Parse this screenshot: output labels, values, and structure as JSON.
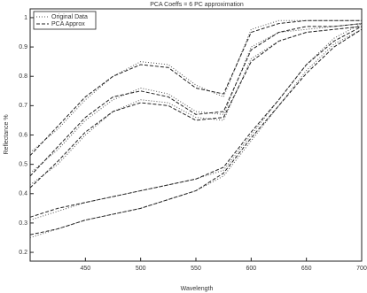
{
  "chart_data": {
    "type": "line",
    "title": "PCA Coeffs = 6 PC approximation",
    "x_label": "Wavelength",
    "y_label": "Reflectance %",
    "x": [
      400,
      425,
      450,
      475,
      500,
      525,
      550,
      575,
      600,
      625,
      650,
      675,
      700
    ],
    "xlim": [
      400,
      700
    ],
    "xticks": [
      450,
      500,
      550,
      600,
      650,
      700
    ],
    "ylim": [
      0.17,
      1.03
    ],
    "yticks": [
      0.2,
      0.3,
      0.4,
      0.5,
      0.6,
      0.7,
      0.8,
      0.9,
      1
    ],
    "legend": "top-left",
    "series": [
      {
        "name": "Original Data",
        "color": "#555555",
        "dash": "1,2",
        "values": [
          [
            0.54,
            0.62,
            0.72,
            0.8,
            0.85,
            0.84,
            0.77,
            0.73,
            0.96,
            0.99,
            0.99,
            0.99,
            0.99
          ],
          [
            0.47,
            0.55,
            0.65,
            0.72,
            0.76,
            0.74,
            0.68,
            0.67,
            0.9,
            0.95,
            0.96,
            0.97,
            0.98
          ],
          [
            0.43,
            0.5,
            0.6,
            0.68,
            0.72,
            0.71,
            0.66,
            0.65,
            0.86,
            0.92,
            0.95,
            0.96,
            0.97
          ],
          [
            0.31,
            0.34,
            0.37,
            0.39,
            0.41,
            0.43,
            0.45,
            0.48,
            0.6,
            0.72,
            0.84,
            0.93,
            0.98
          ],
          [
            0.25,
            0.28,
            0.31,
            0.33,
            0.35,
            0.38,
            0.41,
            0.46,
            0.58,
            0.7,
            0.82,
            0.91,
            0.96
          ]
        ]
      },
      {
        "name": "PCA Approx",
        "color": "#222222",
        "dash": "4,2",
        "values": [
          [
            0.53,
            0.63,
            0.73,
            0.8,
            0.84,
            0.83,
            0.76,
            0.74,
            0.95,
            0.98,
            0.99,
            0.99,
            0.99
          ],
          [
            0.46,
            0.56,
            0.66,
            0.73,
            0.75,
            0.73,
            0.67,
            0.68,
            0.89,
            0.95,
            0.97,
            0.97,
            0.98
          ],
          [
            0.42,
            0.51,
            0.61,
            0.68,
            0.71,
            0.7,
            0.65,
            0.66,
            0.85,
            0.92,
            0.95,
            0.96,
            0.97
          ],
          [
            0.32,
            0.35,
            0.37,
            0.39,
            0.41,
            0.43,
            0.45,
            0.49,
            0.61,
            0.72,
            0.84,
            0.92,
            0.97
          ],
          [
            0.26,
            0.28,
            0.31,
            0.33,
            0.35,
            0.38,
            0.41,
            0.47,
            0.59,
            0.7,
            0.81,
            0.9,
            0.96
          ]
        ]
      }
    ]
  }
}
